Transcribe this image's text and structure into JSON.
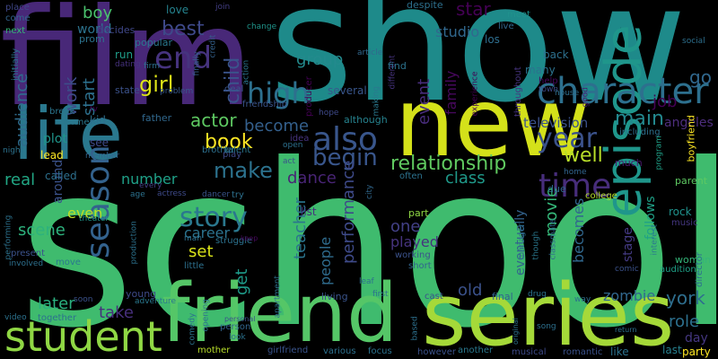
{
  "words": [
    {
      "text": "school",
      "color": "#3fbb6e"
    },
    {
      "text": "show",
      "color": "#1e8a8a"
    },
    {
      "text": "film",
      "color": "#482878"
    },
    {
      "text": "new",
      "color": "#d4e11a"
    },
    {
      "text": "series",
      "color": "#a5d939"
    },
    {
      "text": "friend",
      "color": "#55c667"
    },
    {
      "text": "life",
      "color": "#2a788e"
    },
    {
      "text": "episode",
      "color": "#1f968b"
    },
    {
      "text": "student",
      "color": "#8fd744"
    },
    {
      "text": "character",
      "color": "#2d708e"
    },
    {
      "text": "also",
      "color": "#39568c"
    },
    {
      "text": "end",
      "color": "#46337e"
    },
    {
      "text": "high",
      "color": "#2d708e"
    },
    {
      "text": "time",
      "color": "#472d7b"
    },
    {
      "text": "year",
      "color": "#3b528b"
    },
    {
      "text": "season",
      "color": "#33628d"
    },
    {
      "text": "story",
      "color": "#2a788e"
    },
    {
      "text": "relationship",
      "color": "#60ca60"
    },
    {
      "text": "begin",
      "color": "#39568c"
    },
    {
      "text": "well",
      "color": "#b8de29"
    },
    {
      "text": "make",
      "color": "#2c728e"
    },
    {
      "text": "book",
      "color": "#fde725"
    },
    {
      "text": "girl",
      "color": "#dde318"
    },
    {
      "text": "best",
      "color": "#3e4989"
    },
    {
      "text": "child",
      "color": "#3a548c"
    },
    {
      "text": "boy",
      "color": "#4ac16d"
    },
    {
      "text": "group",
      "color": "#238a8d"
    },
    {
      "text": "star",
      "color": "#440154"
    },
    {
      "text": "studio",
      "color": "#31688e"
    },
    {
      "text": "event",
      "color": "#472c7a"
    },
    {
      "text": "family",
      "color": "#46085c"
    },
    {
      "text": "world",
      "color": "#2c738e"
    },
    {
      "text": "work",
      "color": "#3d4d8a"
    },
    {
      "text": "start",
      "color": "#2d708e"
    },
    {
      "text": "audience",
      "color": "#2f6c8e"
    },
    {
      "text": "actor",
      "color": "#5ec962"
    },
    {
      "text": "become",
      "color": "#34608d"
    },
    {
      "text": "television",
      "color": "#3b528b"
    },
    {
      "text": "main",
      "color": "#23888e"
    },
    {
      "text": "job",
      "color": "#440154"
    },
    {
      "text": "go",
      "color": "#31688e"
    },
    {
      "text": "angeles",
      "color": "#4d2e7d"
    },
    {
      "text": "class",
      "color": "#1f9a8a"
    },
    {
      "text": "dance",
      "color": "#482475"
    },
    {
      "text": "number",
      "color": "#1fa188"
    },
    {
      "text": "real",
      "color": "#22a785"
    },
    {
      "text": "scene",
      "color": "#2db27d"
    },
    {
      "text": "around",
      "color": "#3b528b"
    },
    {
      "text": "even",
      "color": "#bddf26"
    },
    {
      "text": "career",
      "color": "#2c738e"
    },
    {
      "text": "set",
      "color": "#dae319"
    },
    {
      "text": "teacher",
      "color": "#2b758e"
    },
    {
      "text": "performance",
      "color": "#3e4a89"
    },
    {
      "text": "one",
      "color": "#424086"
    },
    {
      "text": "played",
      "color": "#46337e"
    },
    {
      "text": "movie",
      "color": "#35b779"
    },
    {
      "text": "becomes",
      "color": "#31688e"
    },
    {
      "text": "stage",
      "color": "#443a83"
    },
    {
      "text": "follows",
      "color": "#1fa187"
    },
    {
      "text": "eventually",
      "color": "#33638d"
    },
    {
      "text": "later",
      "color": "#2ab07f"
    },
    {
      "text": "get",
      "color": "#1e9b8a"
    },
    {
      "text": "take",
      "color": "#472f7d"
    },
    {
      "text": "people",
      "color": "#2f6c8e"
    },
    {
      "text": "old",
      "color": "#3b528b"
    },
    {
      "text": "zombie",
      "color": "#31688e"
    },
    {
      "text": "role",
      "color": "#2d708e"
    },
    {
      "text": "york",
      "color": "#2e6e8e"
    },
    {
      "text": "day",
      "color": "#453781"
    },
    {
      "text": "last",
      "color": "#277f8e"
    },
    {
      "text": "love",
      "color": "#25838e"
    },
    {
      "text": "place",
      "color": "#3f4788"
    },
    {
      "text": "come",
      "color": "#32658e"
    },
    {
      "text": "next",
      "color": "#35b779"
    },
    {
      "text": "initially",
      "color": "#2c728e"
    },
    {
      "text": "decides",
      "color": "#3f4788"
    },
    {
      "text": "prom",
      "color": "#2c728e"
    },
    {
      "text": "run",
      "color": "#1f9e89"
    },
    {
      "text": "dating",
      "color": "#46327e"
    },
    {
      "text": "state",
      "color": "#3b528b"
    },
    {
      "text": "popular",
      "color": "#2a788e"
    },
    {
      "text": "firm",
      "color": "#2d708e"
    },
    {
      "text": "problem",
      "color": "#38598c"
    },
    {
      "text": "finally",
      "color": "#355f8d"
    },
    {
      "text": "credit",
      "color": "#34618d"
    },
    {
      "text": "join",
      "color": "#433e85"
    },
    {
      "text": "deal",
      "color": "#39568c"
    },
    {
      "text": "change",
      "color": "#1f958b"
    },
    {
      "text": "action",
      "color": "#2b758e"
    },
    {
      "text": "friendship",
      "color": "#3a548c"
    },
    {
      "text": "producer",
      "color": "#440154"
    },
    {
      "text": "several",
      "color": "#39568c"
    },
    {
      "text": "hope",
      "color": "#3e4989"
    },
    {
      "text": "although",
      "color": "#26828e"
    },
    {
      "text": "despite",
      "color": "#2d708e"
    },
    {
      "text": "article",
      "color": "#31688e"
    },
    {
      "text": "making",
      "color": "#2a788e"
    },
    {
      "text": "different",
      "color": "#46337e"
    },
    {
      "text": "live",
      "color": "#31688e"
    },
    {
      "text": "meet",
      "color": "#20928c"
    },
    {
      "text": "los",
      "color": "#2e6e8e"
    },
    {
      "text": "find",
      "color": "#2c728e"
    },
    {
      "text": "experience",
      "color": "#440154"
    },
    {
      "text": "throughout",
      "color": "#46337e"
    },
    {
      "text": "back",
      "color": "#2d708e"
    },
    {
      "text": "many",
      "color": "#2c728e"
    },
    {
      "text": "help",
      "color": "#46085c"
    },
    {
      "text": "town",
      "color": "#3e4a89"
    },
    {
      "text": "house",
      "color": "#2e6e8e"
    },
    {
      "text": "good",
      "color": "#481f70"
    },
    {
      "text": "social",
      "color": "#2d708e"
    },
    {
      "text": "boyfriend",
      "color": "#fde725"
    },
    {
      "text": "including",
      "color": "#2d708e"
    },
    {
      "text": "program",
      "color": "#1fa188"
    },
    {
      "text": "parent",
      "color": "#5ec962"
    },
    {
      "text": "much",
      "color": "#481a6c"
    },
    {
      "text": "rock",
      "color": "#20928c"
    },
    {
      "text": "music",
      "color": "#453781"
    },
    {
      "text": "woman",
      "color": "#34b679"
    },
    {
      "text": "audition",
      "color": "#1fa187"
    },
    {
      "text": "director",
      "color": "#2d708e"
    },
    {
      "text": "interest",
      "color": "#2a788e"
    },
    {
      "text": "comic",
      "color": "#3b528b"
    },
    {
      "text": "due",
      "color": "#31688e"
    },
    {
      "text": "home",
      "color": "#32658e"
    },
    {
      "text": "college",
      "color": "#b5de2b"
    },
    {
      "text": "break",
      "color": "#2b758e"
    },
    {
      "text": "former",
      "color": "#2a788e"
    },
    {
      "text": "tv",
      "color": "#440154"
    },
    {
      "text": "kid",
      "color": "#2d708e"
    },
    {
      "text": "father",
      "color": "#31688e"
    },
    {
      "text": "plot",
      "color": "#1f958b"
    },
    {
      "text": "see",
      "color": "#3e4a89"
    },
    {
      "text": "lead",
      "color": "#fde725"
    },
    {
      "text": "member",
      "color": "#32658e"
    },
    {
      "text": "called",
      "color": "#2d708e"
    },
    {
      "text": "night",
      "color": "#2c728e"
    },
    {
      "text": "brother",
      "color": "#2d708e"
    },
    {
      "text": "play",
      "color": "#3e4989"
    },
    {
      "text": "talent",
      "color": "#2a788e"
    },
    {
      "text": "act",
      "color": "#3b528b"
    },
    {
      "text": "open",
      "color": "#2d708e"
    },
    {
      "text": "idea",
      "color": "#46337e"
    },
    {
      "text": "often",
      "color": "#2c728e"
    },
    {
      "text": "city",
      "color": "#31688e"
    },
    {
      "text": "every",
      "color": "#433e85"
    },
    {
      "text": "actress",
      "color": "#3e4a89"
    },
    {
      "text": "dancer",
      "color": "#3a548c"
    },
    {
      "text": "try",
      "color": "#2d708e"
    },
    {
      "text": "age",
      "color": "#2c728e"
    },
    {
      "text": "list",
      "color": "#46327e"
    },
    {
      "text": "part",
      "color": "#8fd744"
    },
    {
      "text": "theater",
      "color": "#1f958b"
    },
    {
      "text": "performing",
      "color": "#2c728e"
    },
    {
      "text": "present",
      "color": "#3b528b"
    },
    {
      "text": "involved",
      "color": "#2d708e"
    },
    {
      "text": "move",
      "color": "#2a788e"
    },
    {
      "text": "production",
      "color": "#2c728e"
    },
    {
      "text": "little",
      "color": "#2d708e"
    },
    {
      "text": "struggle",
      "color": "#2c728e"
    },
    {
      "text": "man",
      "color": "#2d708e"
    },
    {
      "text": "keep",
      "color": "#46085c"
    },
    {
      "text": "working",
      "color": "#3b528b"
    },
    {
      "text": "short",
      "color": "#32658e"
    },
    {
      "text": "leaf",
      "color": "#2d708e"
    },
    {
      "text": "first",
      "color": "#2c728e"
    },
    {
      "text": "living",
      "color": "#3a548c"
    },
    {
      "text": "cast",
      "color": "#3b528b"
    },
    {
      "text": "final",
      "color": "#32658e"
    },
    {
      "text": "drug",
      "color": "#2c728e"
    },
    {
      "text": "manager",
      "color": "#2d708e"
    },
    {
      "text": "though",
      "color": "#2a788e"
    },
    {
      "text": "classmate",
      "color": "#31688e"
    },
    {
      "text": "way",
      "color": "#2d708e"
    },
    {
      "text": "soon",
      "color": "#3b528b"
    },
    {
      "text": "video",
      "color": "#2c728e"
    },
    {
      "text": "together",
      "color": "#2d708e"
    },
    {
      "text": "young",
      "color": "#3e4a89"
    },
    {
      "text": "adventure",
      "color": "#2a788e"
    },
    {
      "text": "opening",
      "color": "#2d708e"
    },
    {
      "text": "comedy",
      "color": "#2c728e"
    },
    {
      "text": "personal",
      "color": "#3b528b"
    },
    {
      "text": "person",
      "color": "#32658e"
    },
    {
      "text": "apartment",
      "color": "#2d708e"
    },
    {
      "text": "look",
      "color": "#2c728e"
    },
    {
      "text": "mother",
      "color": "#b8de29"
    },
    {
      "text": "girlfriend",
      "color": "#3a548c"
    },
    {
      "text": "various",
      "color": "#2d708e"
    },
    {
      "text": "focus",
      "color": "#2c728e"
    },
    {
      "text": "based",
      "color": "#2d708e"
    },
    {
      "text": "however",
      "color": "#3b528b"
    },
    {
      "text": "another",
      "color": "#2a788e"
    },
    {
      "text": "original",
      "color": "#2c728e"
    },
    {
      "text": "song",
      "color": "#2d708e"
    },
    {
      "text": "musical",
      "color": "#3e4a89"
    },
    {
      "text": "romantic",
      "color": "#3b528b"
    },
    {
      "text": "like",
      "color": "#2c728e"
    },
    {
      "text": "return",
      "color": "#2d708e"
    },
    {
      "text": "party",
      "color": "#fde725"
    }
  ]
}
